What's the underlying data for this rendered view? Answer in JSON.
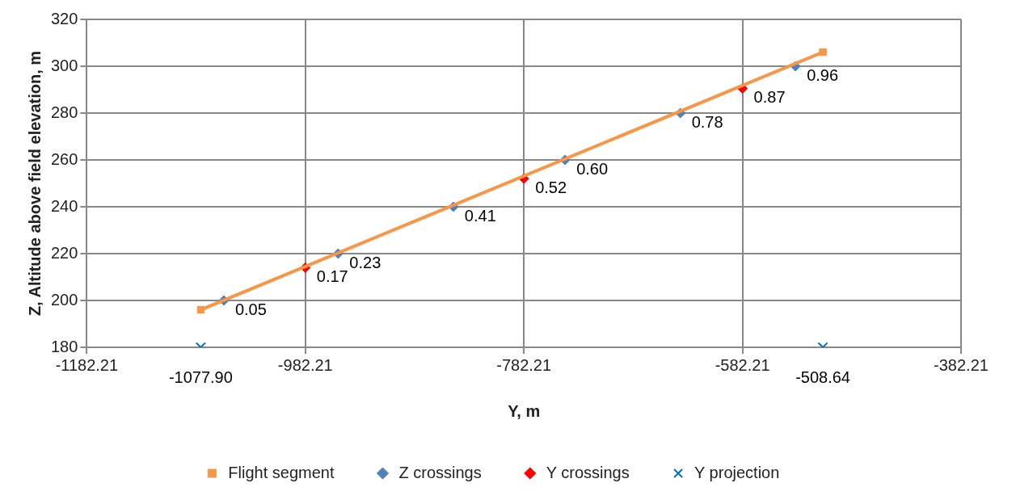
{
  "chart_data": {
    "type": "scatter",
    "xlabel": "Y, m",
    "ylabel": "Z, Altitude above field elevation, m",
    "xlim": [
      -1182.21,
      -382.21
    ],
    "xticks": [
      -1182.21,
      -982.21,
      -782.21,
      -582.21,
      -382.21
    ],
    "ylim": [
      180,
      320
    ],
    "yticks": [
      180,
      200,
      220,
      240,
      260,
      280,
      300,
      320
    ],
    "grid": true,
    "legend": "bottom",
    "series": [
      {
        "name": "Flight segment",
        "type": "line",
        "marker": "square",
        "color": "#f79646",
        "x": [
          -1077.9,
          -508.64
        ],
        "values": [
          196,
          306
        ]
      },
      {
        "name": "Z crossings",
        "type": "scatter",
        "marker": "diamond",
        "color": "#4f81bd",
        "x": [
          -1056.8,
          -952.2,
          -846.8,
          -744.5,
          -639.1,
          -533.7
        ],
        "values": [
          200,
          220,
          240,
          260,
          280,
          300
        ]
      },
      {
        "name": "Y crossings",
        "type": "scatter",
        "marker": "diamond",
        "color": "#ff0000",
        "x": [
          -982.21,
          -782.21,
          -582.21
        ],
        "values": [
          214,
          252,
          290.5
        ]
      },
      {
        "name": "Y projection",
        "type": "scatter",
        "marker": "cross",
        "color": "#0070c0",
        "x": [
          -1077.9,
          -508.64
        ],
        "values": [
          180,
          180
        ]
      }
    ],
    "annotations": [
      {
        "text": "0.05",
        "x": -1056.8,
        "y": 200
      },
      {
        "text": "0.23",
        "x": -952.2,
        "y": 220
      },
      {
        "text": "0.41",
        "x": -846.8,
        "y": 240
      },
      {
        "text": "0.60",
        "x": -744.5,
        "y": 260
      },
      {
        "text": "0.78",
        "x": -639.1,
        "y": 280
      },
      {
        "text": "0.96",
        "x": -533.7,
        "y": 300
      },
      {
        "text": "0.17",
        "x": -982.21,
        "y": 214
      },
      {
        "text": "0.52",
        "x": -782.21,
        "y": 252
      },
      {
        "text": "0.87",
        "x": -582.21,
        "y": 290.5
      },
      {
        "text": "-1077.90",
        "x": -1077.9,
        "y": 180
      },
      {
        "text": "-508.64",
        "x": -508.64,
        "y": 180
      }
    ]
  }
}
